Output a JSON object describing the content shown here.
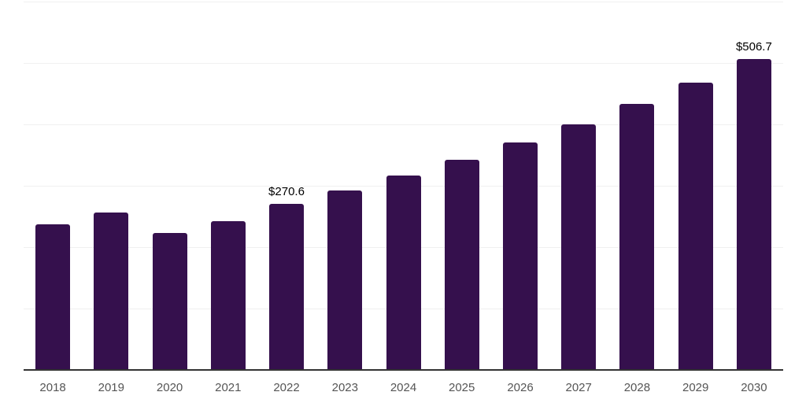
{
  "chart_data": {
    "type": "bar",
    "categories": [
      "2018",
      "2019",
      "2020",
      "2021",
      "2022",
      "2023",
      "2024",
      "2025",
      "2026",
      "2027",
      "2028",
      "2029",
      "2030"
    ],
    "values": [
      237.6,
      255.9,
      223.4,
      242.5,
      270.6,
      292.7,
      316.6,
      342.4,
      370.3,
      400.6,
      433.3,
      468.6,
      506.7
    ],
    "labeled_points": [
      {
        "category": "2022",
        "text": "$270.6"
      },
      {
        "category": "2030",
        "text": "$506.7"
      }
    ],
    "xlabel": "",
    "ylabel": "",
    "ylim": [
      0,
      600
    ],
    "grid_step": 100,
    "grid": true,
    "legend": false,
    "y_tick_labels_visible": false,
    "colors": {
      "bar": "#35104D",
      "gridline": "#f0f0f0",
      "axis_line": "#333333",
      "tick_label": "#555555",
      "data_label": "#000000"
    }
  }
}
